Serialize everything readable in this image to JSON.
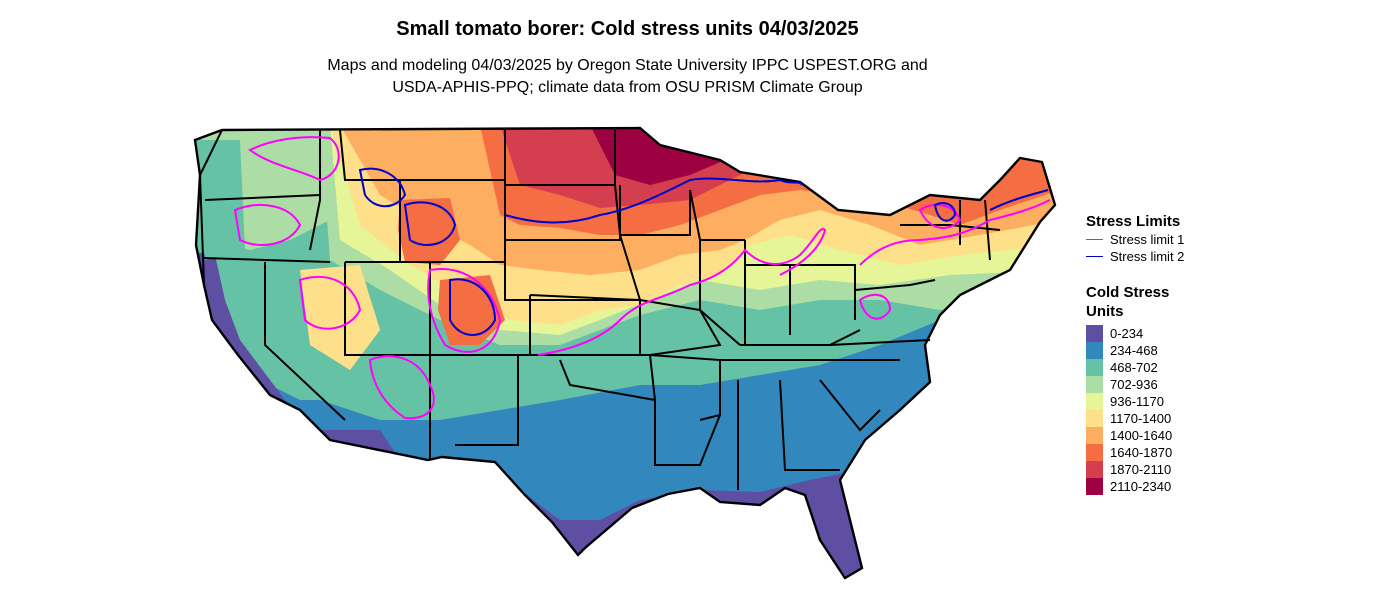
{
  "title": "Small tomato borer: Cold stress units 04/03/2025",
  "subtitle_line1": "Maps and modeling 04/03/2025 by Oregon State University IPPC USPEST.ORG and",
  "subtitle_line2": "USDA-APHIS-PPQ; climate data from OSU PRISM Climate Group",
  "stress_legend": {
    "title": "Stress Limits",
    "items": [
      {
        "label": "Stress limit 1",
        "color": "#ff00ff"
      },
      {
        "label": "Stress limit 2",
        "color": "#0000cc"
      }
    ]
  },
  "units_legend": {
    "title_line1": "Cold Stress",
    "title_line2": "Units",
    "items": [
      {
        "label": "0-234",
        "color": "#5e4fa2"
      },
      {
        "label": "234-468",
        "color": "#3288bd"
      },
      {
        "label": "468-702",
        "color": "#66c2a5"
      },
      {
        "label": "702-936",
        "color": "#abdda4"
      },
      {
        "label": "936-1170",
        "color": "#e6f598"
      },
      {
        "label": "1170-1400",
        "color": "#fee08b"
      },
      {
        "label": "1400-1640",
        "color": "#fdae61"
      },
      {
        "label": "1640-1870",
        "color": "#f46d43"
      },
      {
        "label": "1870-2110",
        "color": "#d53e4f"
      },
      {
        "label": "2110-2340",
        "color": "#9e0142"
      }
    ]
  }
}
